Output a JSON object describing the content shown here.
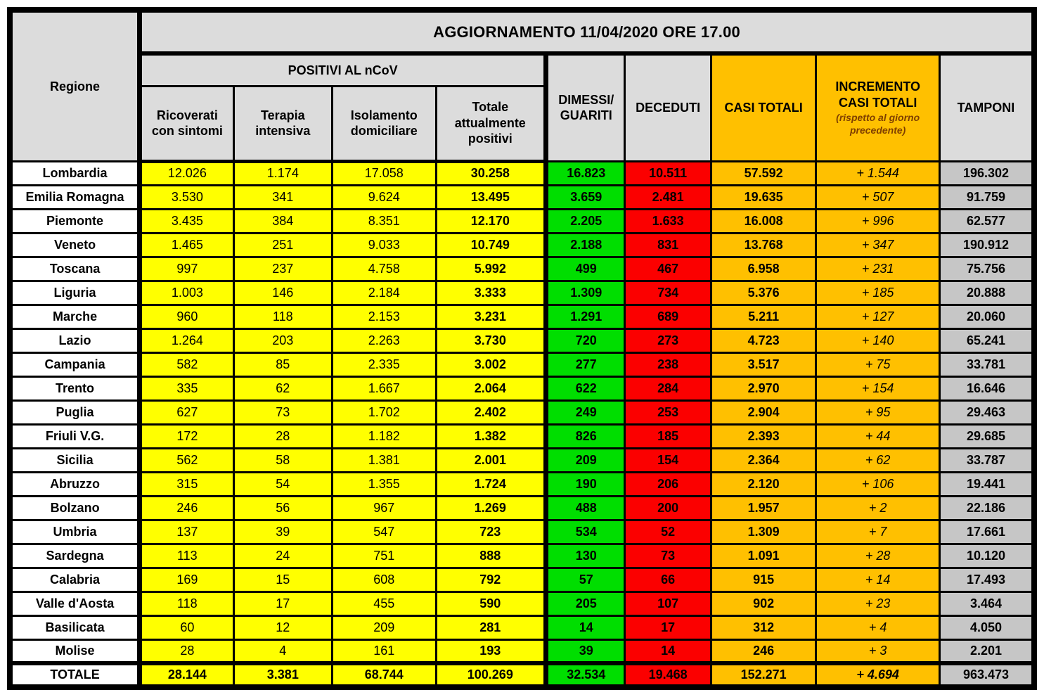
{
  "title": "AGGIORNAMENTO 11/04/2020 ORE 17.00",
  "headers": {
    "regione": "Regione",
    "group_positivi": "POSITIVI AL nCoV",
    "sub": [
      "Ricoverati con sintomi",
      "Terapia intensiva",
      "Isolamento domiciliare",
      "Totale attualmente positivi"
    ],
    "dimessi": "DIMESSI/ GUARITI",
    "deceduti": "DECEDUTI",
    "casi_totali": "CASI TOTALI",
    "incremento_title": "INCREMENTO CASI TOTALI",
    "incremento_sub": "(rispetto al giorno precedente)",
    "tamponi": "TAMPONI"
  },
  "colors": {
    "yellow": "#FFFF00",
    "green": "#00DE00",
    "red": "#FB0000",
    "orange": "#FFC000",
    "gray_header": "#DCDCDC",
    "gray_cell": "#C6C6C6",
    "note": "#7F3F00"
  },
  "rows": [
    [
      "Lombardia",
      "12.026",
      "1.174",
      "17.058",
      "30.258",
      "16.823",
      "10.511",
      "57.592",
      "+ 1.544",
      "196.302"
    ],
    [
      "Emilia Romagna",
      "3.530",
      "341",
      "9.624",
      "13.495",
      "3.659",
      "2.481",
      "19.635",
      "+ 507",
      "91.759"
    ],
    [
      "Piemonte",
      "3.435",
      "384",
      "8.351",
      "12.170",
      "2.205",
      "1.633",
      "16.008",
      "+ 996",
      "62.577"
    ],
    [
      "Veneto",
      "1.465",
      "251",
      "9.033",
      "10.749",
      "2.188",
      "831",
      "13.768",
      "+ 347",
      "190.912"
    ],
    [
      "Toscana",
      "997",
      "237",
      "4.758",
      "5.992",
      "499",
      "467",
      "6.958",
      "+ 231",
      "75.756"
    ],
    [
      "Liguria",
      "1.003",
      "146",
      "2.184",
      "3.333",
      "1.309",
      "734",
      "5.376",
      "+ 185",
      "20.888"
    ],
    [
      "Marche",
      "960",
      "118",
      "2.153",
      "3.231",
      "1.291",
      "689",
      "5.211",
      "+ 127",
      "20.060"
    ],
    [
      "Lazio",
      "1.264",
      "203",
      "2.263",
      "3.730",
      "720",
      "273",
      "4.723",
      "+ 140",
      "65.241"
    ],
    [
      "Campania",
      "582",
      "85",
      "2.335",
      "3.002",
      "277",
      "238",
      "3.517",
      "+ 75",
      "33.781"
    ],
    [
      "Trento",
      "335",
      "62",
      "1.667",
      "2.064",
      "622",
      "284",
      "2.970",
      "+ 154",
      "16.646"
    ],
    [
      "Puglia",
      "627",
      "73",
      "1.702",
      "2.402",
      "249",
      "253",
      "2.904",
      "+ 95",
      "29.463"
    ],
    [
      "Friuli V.G.",
      "172",
      "28",
      "1.182",
      "1.382",
      "826",
      "185",
      "2.393",
      "+ 44",
      "29.685"
    ],
    [
      "Sicilia",
      "562",
      "58",
      "1.381",
      "2.001",
      "209",
      "154",
      "2.364",
      "+ 62",
      "33.787"
    ],
    [
      "Abruzzo",
      "315",
      "54",
      "1.355",
      "1.724",
      "190",
      "206",
      "2.120",
      "+ 106",
      "19.441"
    ],
    [
      "Bolzano",
      "246",
      "56",
      "967",
      "1.269",
      "488",
      "200",
      "1.957",
      "+ 2",
      "22.186"
    ],
    [
      "Umbria",
      "137",
      "39",
      "547",
      "723",
      "534",
      "52",
      "1.309",
      "+ 7",
      "17.661"
    ],
    [
      "Sardegna",
      "113",
      "24",
      "751",
      "888",
      "130",
      "73",
      "1.091",
      "+ 28",
      "10.120"
    ],
    [
      "Calabria",
      "169",
      "15",
      "608",
      "792",
      "57",
      "66",
      "915",
      "+ 14",
      "17.493"
    ],
    [
      "Valle d'Aosta",
      "118",
      "17",
      "455",
      "590",
      "205",
      "107",
      "902",
      "+ 23",
      "3.464"
    ],
    [
      "Basilicata",
      "60",
      "12",
      "209",
      "281",
      "14",
      "17",
      "312",
      "+ 4",
      "4.050"
    ],
    [
      "Molise",
      "28",
      "4",
      "161",
      "193",
      "39",
      "14",
      "246",
      "+ 3",
      "2.201"
    ]
  ],
  "total_row": [
    "TOTALE",
    "28.144",
    "3.381",
    "68.744",
    "100.269",
    "32.534",
    "19.468",
    "152.271",
    "+ 4.694",
    "963.473"
  ],
  "chart_data": {
    "type": "table",
    "title": "AGGIORNAMENTO 11/04/2020 ORE 17.00",
    "columns": [
      "Regione",
      "Ricoverati con sintomi",
      "Terapia intensiva",
      "Isolamento domiciliare",
      "Totale attualmente positivi",
      "Dimessi/Guariti",
      "Deceduti",
      "Casi totali",
      "Incremento casi totali",
      "Tamponi"
    ],
    "totals": [
      "TOTALE",
      28144,
      3381,
      68744,
      100269,
      32534,
      19468,
      152271,
      4694,
      963473
    ]
  }
}
